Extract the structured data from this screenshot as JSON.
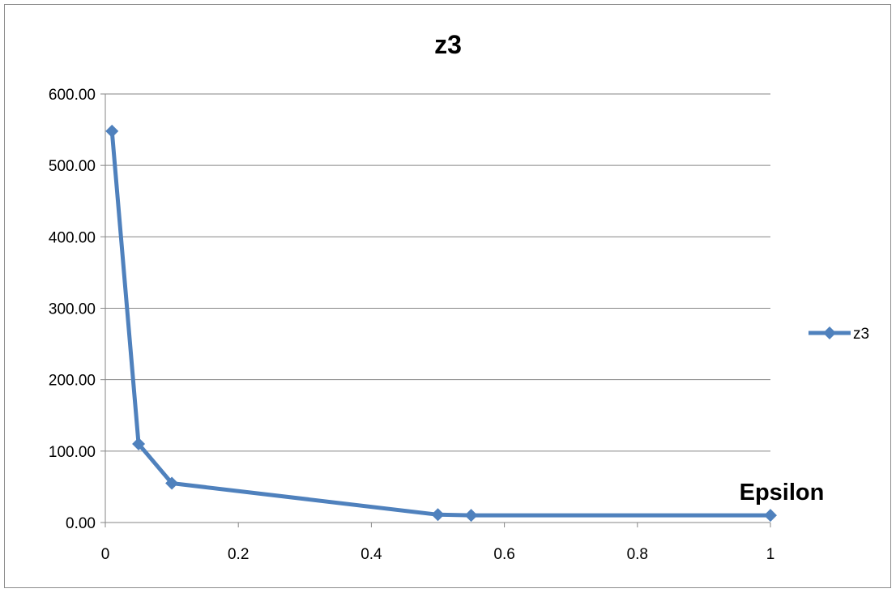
{
  "chart_data": {
    "type": "scatter",
    "title": "z3",
    "xlabel": "Epsilon",
    "ylabel": "",
    "xlim": [
      0,
      1
    ],
    "ylim": [
      0,
      600
    ],
    "xticks": [
      "0",
      "0.2",
      "0.4",
      "0.6",
      "0.8",
      "1"
    ],
    "yticks": [
      "0.00",
      "100.00",
      "200.00",
      "300.00",
      "400.00",
      "500.00",
      "600.00"
    ],
    "grid": "horizontal",
    "legend_position": "right",
    "series": [
      {
        "name": "z3",
        "color": "#4f81bd",
        "marker": "diamond",
        "x": [
          0.01,
          0.05,
          0.1,
          0.5,
          0.55,
          1
        ],
        "y": [
          548,
          110,
          55,
          11,
          10,
          10
        ]
      }
    ]
  }
}
